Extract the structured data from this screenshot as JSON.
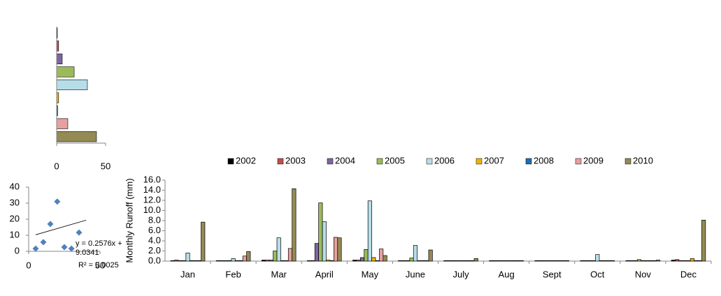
{
  "chart_data": [
    {
      "type": "hbar",
      "values": [
        0.7,
        2,
        5.7,
        17.9,
        31.4,
        2,
        1,
        11.4,
        40.7
      ],
      "colors": [
        "#000000",
        "#c0504d",
        "#8064a2",
        "#9bbb59",
        "#b7dee8",
        "#f0b400",
        "#1f6eb4",
        "#e6a0a0",
        "#948a54"
      ],
      "xlim": [
        0,
        50
      ],
      "xticks": [
        0,
        50
      ]
    },
    {
      "type": "scatter",
      "x": [
        4.9,
        10.3,
        15.2,
        20,
        25,
        30,
        35.3
      ],
      "values": [
        1.7,
        5.7,
        17,
        31,
        2.6,
        1.7,
        11.7
      ],
      "color": "#4f81bd",
      "trendline": {
        "slope": 0.2576,
        "intercept": 9.0341
      },
      "equation": "y = 0.2576x + 9.0341",
      "r_squared": "R² = 0.0025",
      "xlim": [
        0,
        50
      ],
      "xticks": [
        0,
        50
      ],
      "ylim": [
        0,
        40
      ],
      "yticks": [
        0,
        10,
        20,
        30,
        40
      ]
    },
    {
      "type": "bar",
      "y_label": "Monthly  Runoff (mm)",
      "categories": [
        "Jan",
        "Feb",
        "Mar",
        "April",
        "May",
        "June",
        "July",
        "Aug",
        "Sept",
        "Oct",
        "Nov",
        "Dec"
      ],
      "series": [
        {
          "name": "2002",
          "color": "#000000",
          "values": [
            0.1,
            0.1,
            0.2,
            0.1,
            0.2,
            0.1,
            0.1,
            0.1,
            0.1,
            0.1,
            0.1,
            0.2
          ]
        },
        {
          "name": "2003",
          "color": "#c0504d",
          "values": [
            0.2,
            0.1,
            0.2,
            0.1,
            0.2,
            0.1,
            0.1,
            0.1,
            0.1,
            0.1,
            0.1,
            0.3
          ]
        },
        {
          "name": "2004",
          "color": "#8064a2",
          "values": [
            0.1,
            0.1,
            0.2,
            3.5,
            0.7,
            0.1,
            0.1,
            0.1,
            0.1,
            0.1,
            0.1,
            0.1
          ]
        },
        {
          "name": "2005",
          "color": "#9bbb59",
          "values": [
            0.1,
            0.1,
            2.0,
            11.5,
            2.3,
            0.6,
            0.1,
            0.1,
            0.1,
            0.1,
            0.3,
            0.1
          ]
        },
        {
          "name": "2006",
          "color": "#b7dee8",
          "values": [
            1.6,
            0.5,
            4.6,
            7.8,
            11.9,
            3.1,
            0.1,
            0.1,
            0.1,
            1.3,
            0.1,
            0.1
          ]
        },
        {
          "name": "2007",
          "color": "#f0b400",
          "values": [
            0.1,
            0.1,
            0.1,
            0.2,
            0.7,
            0.1,
            0.1,
            0.1,
            0.1,
            0.1,
            0.1,
            0.5
          ]
        },
        {
          "name": "2008",
          "color": "#1f6eb4",
          "values": [
            0.1,
            0.1,
            0.1,
            0.1,
            0.1,
            0.1,
            0.1,
            0.1,
            0.1,
            0.1,
            0.1,
            0.1
          ]
        },
        {
          "name": "2009",
          "color": "#e6a0a0",
          "values": [
            0.1,
            1.0,
            2.5,
            4.7,
            2.4,
            0.1,
            0.1,
            0.1,
            0.1,
            0.1,
            0.1,
            0.1
          ]
        },
        {
          "name": "2010",
          "color": "#948a54",
          "values": [
            7.7,
            1.9,
            14.3,
            4.6,
            1.1,
            2.2,
            0.5,
            0.1,
            0.1,
            0.1,
            0.2,
            8.1
          ]
        }
      ],
      "ylim": [
        0,
        16
      ],
      "yticks": [
        {
          "value": 0,
          "label": "0.0"
        },
        {
          "value": 2,
          "label": "2.0"
        },
        {
          "value": 4,
          "label": "4.0"
        },
        {
          "value": 6,
          "label": "6.0"
        },
        {
          "value": 8,
          "label": "8.0"
        },
        {
          "value": 10,
          "label": "10.0"
        },
        {
          "value": 12,
          "label": "12.0"
        },
        {
          "value": 14,
          "label": "14.0"
        },
        {
          "value": 16,
          "label": "16.0"
        }
      ],
      "legend": "top",
      "grid": false
    }
  ]
}
